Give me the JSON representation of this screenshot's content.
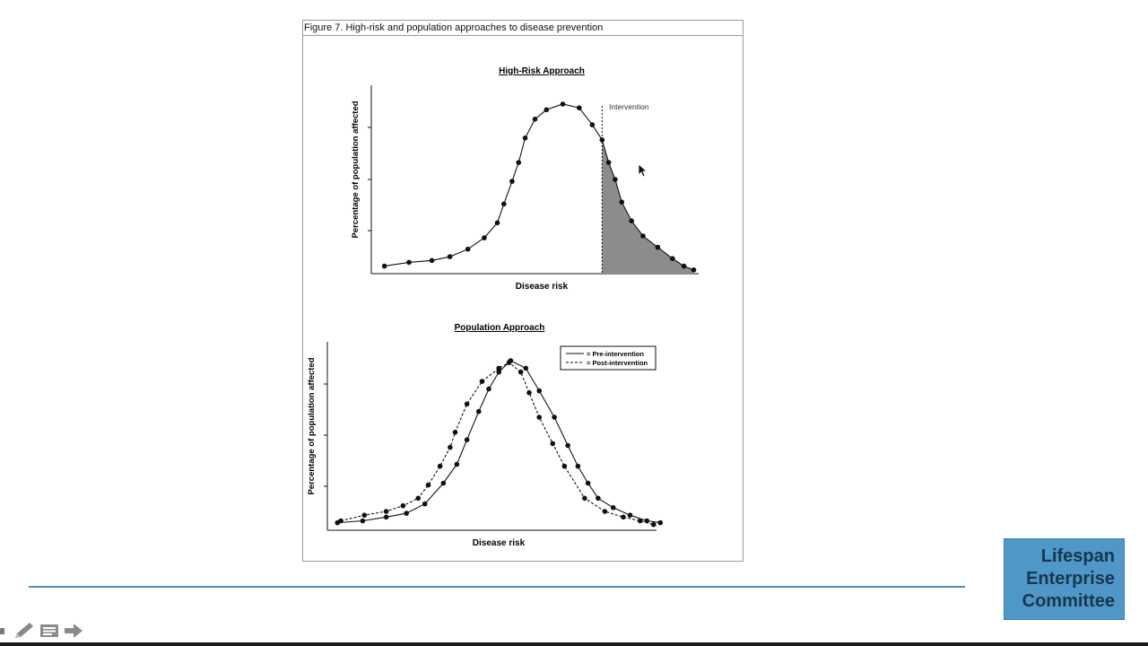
{
  "figure": {
    "caption": "Figure 7. High-risk and population approaches to disease prevention"
  },
  "logo": {
    "lines": [
      "Lifespan",
      "Enterprise",
      "Committee"
    ]
  },
  "toolbar": {
    "icons": [
      "pointer-icon",
      "pen-icon",
      "menu-icon",
      "arrow-right-icon"
    ]
  },
  "colors": {
    "rule": "#4a90b8",
    "logo_bg": "#4f97c7",
    "logo_text": "#17364f",
    "shade": "#8c8c8c"
  },
  "chart_data": [
    {
      "type": "line",
      "title": "High-Risk Approach",
      "xlabel": "Disease risk",
      "ylabel": "Percentage of population affected",
      "annotation": "Intervention",
      "intervention_x": 0.705,
      "shaded_region": "right of intervention",
      "x": [
        0.04,
        0.115,
        0.185,
        0.24,
        0.295,
        0.345,
        0.385,
        0.405,
        0.43,
        0.45,
        0.47,
        0.5,
        0.535,
        0.585,
        0.635,
        0.675,
        0.705,
        0.725,
        0.745,
        0.765,
        0.795,
        0.83,
        0.875,
        0.92,
        0.955,
        0.985
      ],
      "series": [
        {
          "values": [
            0.04,
            0.06,
            0.07,
            0.09,
            0.13,
            0.19,
            0.27,
            0.37,
            0.49,
            0.59,
            0.72,
            0.82,
            0.87,
            0.9,
            0.88,
            0.79,
            0.71,
            0.59,
            0.5,
            0.38,
            0.28,
            0.2,
            0.14,
            0.08,
            0.04,
            0.02
          ]
        }
      ]
    },
    {
      "type": "line",
      "title": "Population Approach",
      "xlabel": "Disease risk",
      "ylabel": "Percentage of population affected",
      "legend_position": "top-right",
      "series": [
        {
          "name": "= Pre-intervention",
          "dash": "solid",
          "x": [
            0.03,
            0.105,
            0.175,
            0.235,
            0.29,
            0.345,
            0.385,
            0.415,
            0.45,
            0.48,
            0.51,
            0.545,
            0.59,
            0.63,
            0.675,
            0.715,
            0.745,
            0.775,
            0.805,
            0.85,
            0.9,
            0.95,
            0.99
          ],
          "values": [
            0.04,
            0.05,
            0.07,
            0.09,
            0.14,
            0.25,
            0.35,
            0.48,
            0.63,
            0.75,
            0.84,
            0.9,
            0.86,
            0.74,
            0.6,
            0.45,
            0.34,
            0.25,
            0.17,
            0.12,
            0.08,
            0.05,
            0.04
          ]
        },
        {
          "name": "= Post-intervention",
          "dash": "dashed",
          "x": [
            0.04,
            0.11,
            0.175,
            0.225,
            0.27,
            0.3,
            0.335,
            0.365,
            0.38,
            0.415,
            0.46,
            0.51,
            0.54,
            0.575,
            0.6,
            0.63,
            0.67,
            0.705,
            0.765,
            0.825,
            0.88,
            0.93,
            0.97
          ],
          "values": [
            0.05,
            0.08,
            0.1,
            0.13,
            0.17,
            0.24,
            0.34,
            0.44,
            0.52,
            0.67,
            0.79,
            0.86,
            0.89,
            0.84,
            0.73,
            0.6,
            0.46,
            0.34,
            0.17,
            0.1,
            0.07,
            0.05,
            0.03
          ]
        }
      ]
    }
  ]
}
